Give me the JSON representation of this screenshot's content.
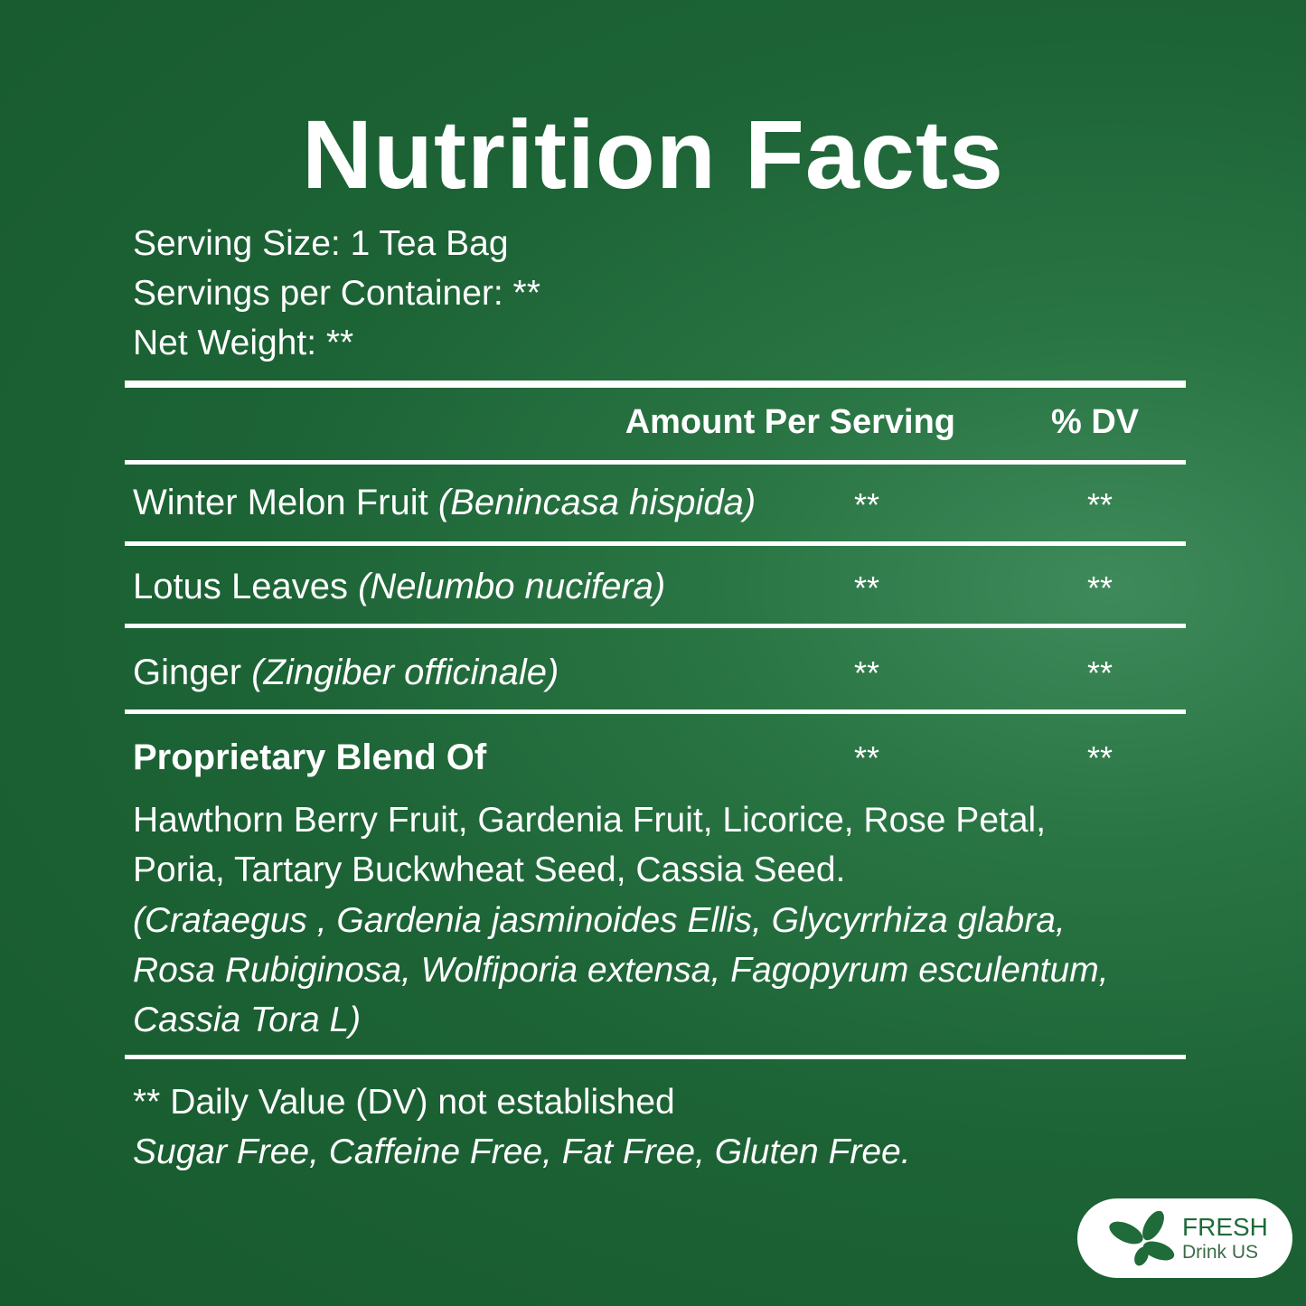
{
  "title": "Nutrition Facts",
  "serving": {
    "size": "Serving Size: 1 Tea Bag",
    "per_container": "Servings per Container: **",
    "net_weight": "Net Weight: **"
  },
  "header": {
    "amount": "Amount Per Serving",
    "dv": "% DV"
  },
  "rows": [
    {
      "name": "Winter Melon Fruit",
      "latin": "(Benincasa hispida)",
      "amount": "**",
      "dv": "**"
    },
    {
      "name": "Lotus Leaves",
      "latin": "(Nelumbo nucifera)",
      "amount": "**",
      "dv": "**"
    },
    {
      "name": "Ginger",
      "latin": "(Zingiber officinale)",
      "amount": "**",
      "dv": "**"
    },
    {
      "name": "Proprietary Blend Of",
      "latin": "",
      "amount": "**",
      "dv": "**"
    }
  ],
  "blend": {
    "lines": [
      "Hawthorn Berry Fruit, Gardenia Fruit, Licorice, Rose Petal,",
      "Poria, Tartary Buckwheat Seed, Cassia Seed."
    ],
    "latin_lines": [
      "(Crataegus , Gardenia jasminoides Ellis, Glycyrrhiza glabra,",
      "Rosa Rubiginosa, Wolfiporia extensa, Fagopyrum esculentum,",
      "Cassia Tora L)"
    ]
  },
  "footer": {
    "note": "** Daily Value (DV) not established",
    "claims": "Sugar Free, Caffeine Free, Fat Free, Gluten Free."
  },
  "logo": {
    "line1": "FRESH",
    "line2": "Drink US",
    "icon": "four-leaf-icon",
    "color": "#1f6b3a"
  },
  "colors": {
    "background": "#1c6335",
    "text": "#ffffff"
  }
}
